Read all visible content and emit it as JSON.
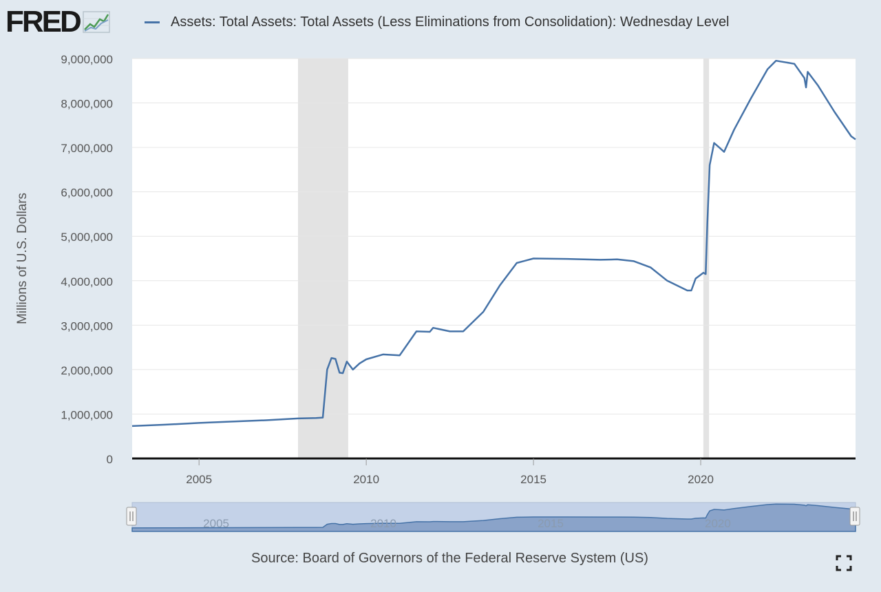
{
  "logo": {
    "text": "FRED",
    "icon": "line-chart-icon"
  },
  "legend": {
    "label": "Assets: Total Assets: Total Assets (Less Eliminations from Consolidation): Wednesday Level",
    "color": "#4572a7"
  },
  "source": "Source: Board of Governors of the Federal Reserve System (US)",
  "fullscreen_icon": "fullscreen-icon",
  "navigator": {
    "tick_labels": [
      "2005",
      "2010",
      "2015",
      "2020"
    ],
    "left_handle_icon": "drag-handle-icon",
    "right_handle_icon": "drag-handle-icon"
  },
  "chart_data": {
    "type": "line",
    "title": "",
    "xlabel": "",
    "ylabel": "Millions of U.S. Dollars",
    "xlim": [
      2003.0,
      2024.63
    ],
    "ylim": [
      0,
      9000000
    ],
    "x_ticks": [
      2005,
      2010,
      2015,
      2020
    ],
    "x_tick_labels": [
      "2005",
      "2010",
      "2015",
      "2020"
    ],
    "y_ticks": [
      0,
      1000000,
      2000000,
      3000000,
      4000000,
      5000000,
      6000000,
      7000000,
      8000000,
      9000000
    ],
    "y_tick_labels": [
      "0",
      "1,000,000",
      "2,000,000",
      "3,000,000",
      "4,000,000",
      "5,000,000",
      "6,000,000",
      "7,000,000",
      "8,000,000",
      "9,000,000"
    ],
    "grid": true,
    "legend_position": "top",
    "recessions": [
      [
        2007.96,
        2009.46
      ],
      [
        2020.08,
        2020.25
      ]
    ],
    "series": [
      {
        "name": "Assets: Total Assets: Total Assets (Less Eliminations from Consolidation): Wednesday Level",
        "color": "#4572a7",
        "points": [
          [
            2003.0,
            730000
          ],
          [
            2004.0,
            760000
          ],
          [
            2005.0,
            800000
          ],
          [
            2006.0,
            830000
          ],
          [
            2007.0,
            860000
          ],
          [
            2007.96,
            900000
          ],
          [
            2008.5,
            910000
          ],
          [
            2008.7,
            920000
          ],
          [
            2008.83,
            2000000
          ],
          [
            2008.96,
            2260000
          ],
          [
            2009.08,
            2240000
          ],
          [
            2009.2,
            1930000
          ],
          [
            2009.3,
            1920000
          ],
          [
            2009.42,
            2180000
          ],
          [
            2009.6,
            2000000
          ],
          [
            2009.8,
            2140000
          ],
          [
            2010.0,
            2230000
          ],
          [
            2010.5,
            2340000
          ],
          [
            2011.0,
            2320000
          ],
          [
            2011.5,
            2860000
          ],
          [
            2011.9,
            2850000
          ],
          [
            2012.0,
            2940000
          ],
          [
            2012.5,
            2860000
          ],
          [
            2012.9,
            2860000
          ],
          [
            2013.5,
            3300000
          ],
          [
            2014.0,
            3900000
          ],
          [
            2014.5,
            4400000
          ],
          [
            2015.0,
            4500000
          ],
          [
            2016.0,
            4490000
          ],
          [
            2017.0,
            4470000
          ],
          [
            2017.5,
            4480000
          ],
          [
            2018.0,
            4440000
          ],
          [
            2018.5,
            4300000
          ],
          [
            2019.0,
            4000000
          ],
          [
            2019.6,
            3780000
          ],
          [
            2019.72,
            3780000
          ],
          [
            2019.85,
            4050000
          ],
          [
            2020.08,
            4180000
          ],
          [
            2020.15,
            4150000
          ],
          [
            2020.2,
            5300000
          ],
          [
            2020.27,
            6600000
          ],
          [
            2020.4,
            7100000
          ],
          [
            2020.55,
            7000000
          ],
          [
            2020.7,
            6900000
          ],
          [
            2021.0,
            7400000
          ],
          [
            2021.5,
            8100000
          ],
          [
            2022.0,
            8760000
          ],
          [
            2022.25,
            8950000
          ],
          [
            2022.8,
            8880000
          ],
          [
            2023.1,
            8560000
          ],
          [
            2023.15,
            8350000
          ],
          [
            2023.2,
            8700000
          ],
          [
            2023.5,
            8400000
          ],
          [
            2024.0,
            7800000
          ],
          [
            2024.5,
            7250000
          ],
          [
            2024.63,
            7180000
          ]
        ]
      }
    ]
  }
}
